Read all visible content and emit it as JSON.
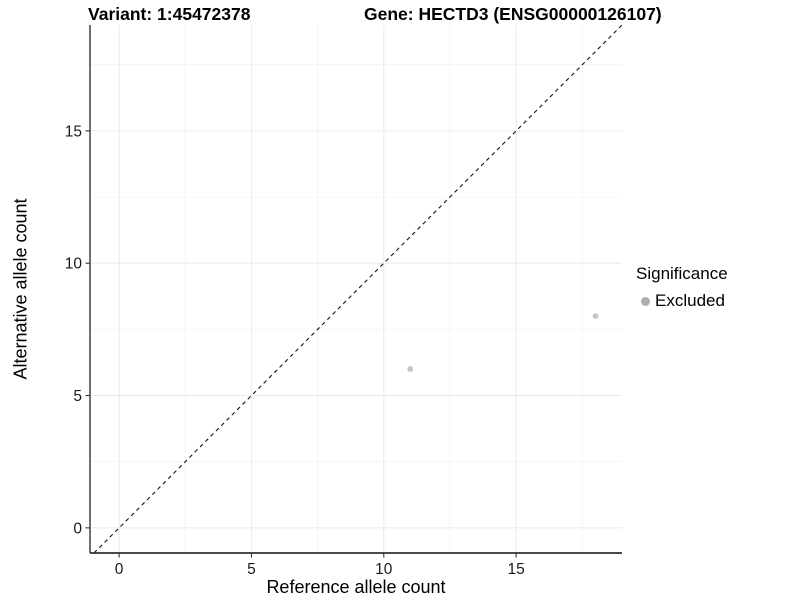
{
  "chart_data": {
    "type": "scatter",
    "title_left": "Variant: 1:45472378",
    "title_right": "Gene: HECTD3 (ENSG00000126107)",
    "xlabel": "Reference allele count",
    "ylabel": "Alternative allele count",
    "xlim": [
      -1.1,
      19.0
    ],
    "ylim": [
      -0.95,
      19.0
    ],
    "x_major_ticks": [
      0,
      5,
      10,
      15
    ],
    "y_major_ticks": [
      0,
      5,
      10,
      15
    ],
    "x_minor_ticks": [
      2.5,
      7.5,
      12.5,
      17.5
    ],
    "y_minor_ticks": [
      2.5,
      7.5,
      12.5,
      17.5
    ],
    "grid": "major+minor",
    "legend": {
      "title": "Significance",
      "position": "right",
      "items": [
        {
          "label": "Excluded",
          "color": "#adadad"
        }
      ]
    },
    "series": [
      {
        "name": "Excluded",
        "color": "#c6c6c6",
        "marker": "circle",
        "points": [
          [
            11,
            6
          ],
          [
            18,
            8
          ]
        ]
      }
    ],
    "reference_line": {
      "slope": 1,
      "intercept": 0,
      "style": "dashed",
      "color": "#141414"
    }
  },
  "style_colors": {
    "grid_major": "#ececec",
    "grid_minor": "#f4f4f4",
    "axis_line": "#333333",
    "tick_label": "#1a1a1a"
  }
}
